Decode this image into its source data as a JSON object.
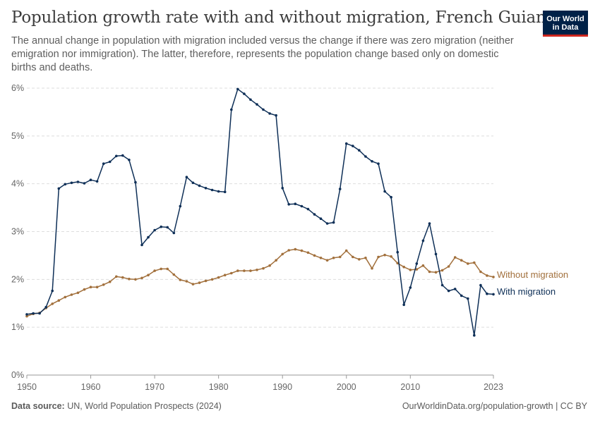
{
  "header": {
    "title": "Population growth rate with and without migration, French Guiana",
    "subtitle": "The annual change in population with migration included versus the change if there was zero migration (neither emigration nor immigration). The latter, therefore, represents the population change based only on domestic births and deaths."
  },
  "logo": {
    "line1": "Our World",
    "line2": "in Data",
    "bg_color": "#002147",
    "accent_color": "#ce261e"
  },
  "footer": {
    "source_label": "Data source:",
    "source_text": "UN, World Population Prospects (2024)",
    "url": "OurWorldinData.org/population-growth | CC BY"
  },
  "chart_data": {
    "type": "line",
    "xlim": [
      1950,
      2023
    ],
    "ylim": [
      0,
      6
    ],
    "y_ticks": [
      0,
      1,
      2,
      3,
      4,
      5,
      6
    ],
    "y_tick_labels": [
      "0%",
      "1%",
      "2%",
      "3%",
      "4%",
      "5%",
      "6%"
    ],
    "x_ticks": [
      1950,
      1960,
      1970,
      1980,
      1990,
      2000,
      2010,
      2023
    ],
    "x_tick_labels": [
      "1950",
      "1960",
      "1970",
      "1980",
      "1990",
      "2000",
      "2010",
      "2023"
    ],
    "grid": "horizontal dashed",
    "legend": "inline-right",
    "series": [
      {
        "name": "Without migration",
        "color": "#a2703c",
        "x_start": 1950,
        "values": [
          1.23,
          1.28,
          1.3,
          1.4,
          1.49,
          1.56,
          1.63,
          1.68,
          1.72,
          1.79,
          1.84,
          1.84,
          1.89,
          1.95,
          2.06,
          2.04,
          2.01,
          2.0,
          2.03,
          2.09,
          2.18,
          2.22,
          2.22,
          2.1,
          1.99,
          1.96,
          1.9,
          1.93,
          1.97,
          2.0,
          2.04,
          2.09,
          2.13,
          2.18,
          2.18,
          2.18,
          2.2,
          2.23,
          2.29,
          2.4,
          2.53,
          2.61,
          2.63,
          2.6,
          2.56,
          2.5,
          2.45,
          2.4,
          2.45,
          2.47,
          2.6,
          2.47,
          2.42,
          2.45,
          2.23,
          2.47,
          2.51,
          2.48,
          2.34,
          2.26,
          2.2,
          2.21,
          2.29,
          2.16,
          2.15,
          2.19,
          2.27,
          2.46,
          2.4,
          2.33,
          2.35,
          2.16,
          2.08,
          2.05
        ]
      },
      {
        "name": "With migration",
        "color": "#0e2f57",
        "x_start": 1950,
        "values": [
          1.27,
          1.29,
          1.29,
          1.42,
          1.76,
          3.9,
          3.99,
          4.02,
          4.04,
          4.01,
          4.08,
          4.05,
          4.42,
          4.46,
          4.58,
          4.59,
          4.5,
          4.03,
          2.72,
          2.88,
          3.03,
          3.1,
          3.09,
          2.97,
          3.53,
          4.14,
          4.02,
          3.96,
          3.91,
          3.87,
          3.84,
          3.83,
          5.55,
          5.98,
          5.88,
          5.76,
          5.66,
          5.55,
          5.47,
          5.43,
          3.91,
          3.57,
          3.58,
          3.53,
          3.47,
          3.36,
          3.27,
          3.17,
          3.19,
          3.89,
          4.84,
          4.79,
          4.7,
          4.57,
          4.47,
          4.42,
          3.84,
          3.72,
          2.57,
          1.47,
          1.83,
          2.33,
          2.81,
          3.17,
          2.53,
          1.88,
          1.76,
          1.8,
          1.66,
          1.6,
          0.83,
          1.88,
          1.7,
          1.69
        ]
      }
    ]
  }
}
